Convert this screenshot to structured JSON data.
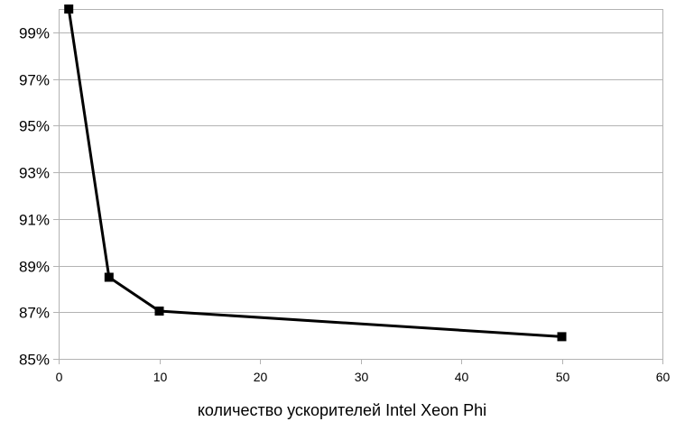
{
  "chart_data": {
    "type": "line",
    "title": "",
    "xlabel": "количество ускорителей Intel Xeon Phi",
    "ylabel": "",
    "xlim": [
      0,
      60
    ],
    "ylim": [
      85,
      100
    ],
    "x_ticks": [
      0,
      10,
      20,
      30,
      40,
      50,
      60
    ],
    "x_tick_labels": [
      "0",
      "10",
      "20",
      "30",
      "40",
      "50",
      "60"
    ],
    "y_ticks": [
      85,
      87,
      89,
      91,
      93,
      95,
      97,
      99
    ],
    "y_tick_labels": [
      "85%",
      "87%",
      "89%",
      "91%",
      "93%",
      "95%",
      "97%",
      "99%"
    ],
    "grid": true,
    "legend": "none",
    "series": [
      {
        "color": "#000000",
        "marker": "square",
        "x": [
          1,
          5,
          10,
          50
        ],
        "y": [
          100,
          88.5,
          87.05,
          85.95
        ]
      }
    ]
  }
}
